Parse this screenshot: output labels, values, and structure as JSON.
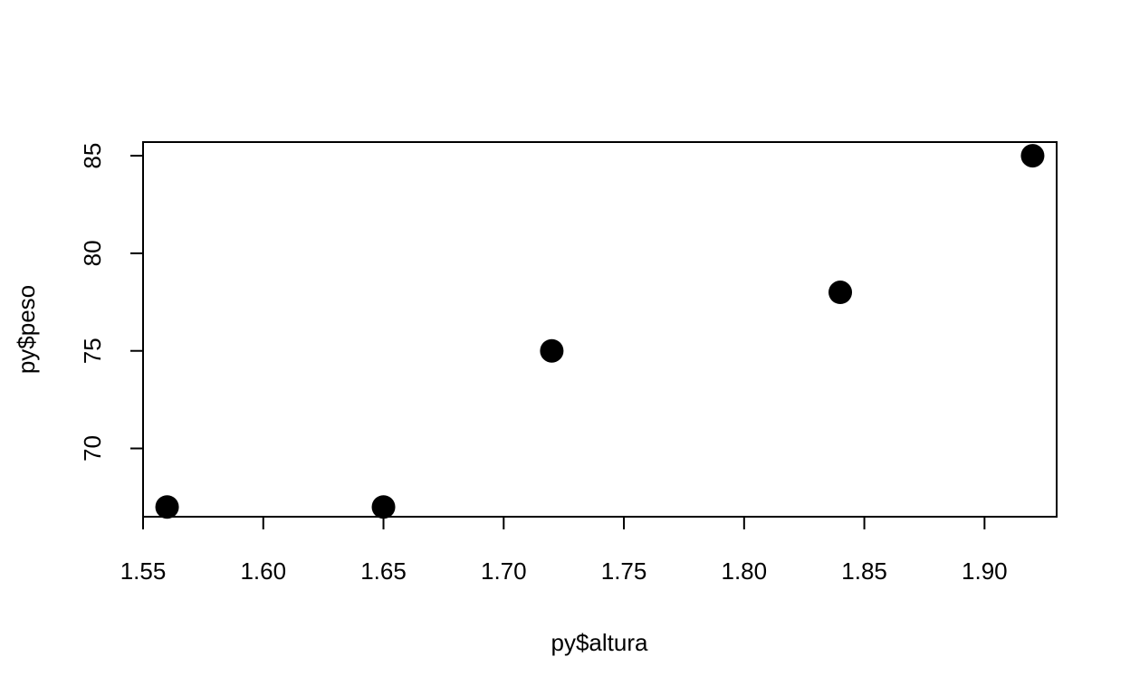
{
  "chart_data": {
    "type": "scatter",
    "title": "",
    "xlabel": "py$altura",
    "ylabel": "py$peso",
    "xlim": [
      1.55,
      1.93
    ],
    "ylim": [
      66.5,
      85.7
    ],
    "x_ticks": [
      1.55,
      1.6,
      1.65,
      1.7,
      1.75,
      1.8,
      1.85,
      1.9
    ],
    "x_tick_labels": [
      "1.55",
      "1.60",
      "1.65",
      "1.70",
      "1.75",
      "1.80",
      "1.85",
      "1.90"
    ],
    "y_ticks": [
      70,
      75,
      80,
      85
    ],
    "y_tick_labels": [
      "70",
      "75",
      "80",
      "85"
    ],
    "grid": false,
    "legend": false,
    "marker_color": "#000000",
    "points": [
      {
        "x": 1.56,
        "y": 67
      },
      {
        "x": 1.65,
        "y": 67
      },
      {
        "x": 1.72,
        "y": 75
      },
      {
        "x": 1.84,
        "y": 78
      },
      {
        "x": 1.92,
        "y": 85
      }
    ]
  }
}
